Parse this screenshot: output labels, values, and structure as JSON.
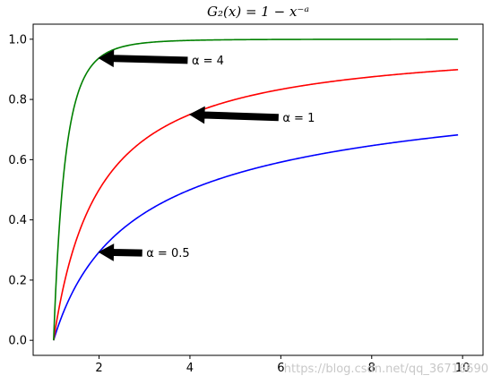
{
  "chart_data": {
    "type": "line",
    "title": "G₂(x) = 1 − x⁻ᵃ",
    "xlabel": "",
    "ylabel": "",
    "xlim": [
      0.55,
      10.45
    ],
    "ylim": [
      -0.05,
      1.05
    ],
    "x_ticks": [
      2,
      4,
      6,
      8,
      10
    ],
    "y_ticks": [
      0.0,
      0.2,
      0.4,
      0.6,
      0.8,
      1.0
    ],
    "x_tick_labels": [
      "2",
      "4",
      "6",
      "8",
      "10"
    ],
    "y_tick_labels": [
      "0.0",
      "0.2",
      "0.4",
      "0.6",
      "0.8",
      "1.0"
    ],
    "x_range": [
      1.0,
      9.9
    ],
    "grid": false,
    "series": [
      {
        "alpha": 0.5,
        "color": "#0000ff",
        "x": [
          1,
          1.5,
          2,
          3,
          4,
          5,
          6,
          7,
          8,
          9,
          9.9
        ],
        "y": [
          0,
          0.18,
          0.29,
          0.42,
          0.5,
          0.55,
          0.59,
          0.62,
          0.65,
          0.67,
          0.68
        ]
      },
      {
        "alpha": 1,
        "color": "#ff0000",
        "x": [
          1,
          1.5,
          2,
          3,
          4,
          5,
          6,
          7,
          8,
          9,
          9.9
        ],
        "y": [
          0,
          0.33,
          0.5,
          0.67,
          0.75,
          0.8,
          0.83,
          0.86,
          0.88,
          0.89,
          0.9
        ]
      },
      {
        "alpha": 4,
        "color": "#008000",
        "x": [
          1,
          1.25,
          1.5,
          2,
          3,
          4,
          5,
          6,
          8,
          9.9
        ],
        "y": [
          0,
          0.59,
          0.8,
          0.94,
          0.99,
          1.0,
          1.0,
          1.0,
          1.0,
          1.0
        ]
      }
    ],
    "annotations": [
      {
        "text": "α = 4",
        "point": [
          2,
          0.9375
        ],
        "text_at": [
          4,
          0.93
        ]
      },
      {
        "text": "α = 1",
        "point": [
          4,
          0.75
        ],
        "text_at": [
          6,
          0.74
        ]
      },
      {
        "text": "α = 0.5",
        "point": [
          2,
          0.2929
        ],
        "text_at": [
          3,
          0.29
        ]
      }
    ]
  },
  "watermark": "https://blog.csdn.net/qq_36716690"
}
